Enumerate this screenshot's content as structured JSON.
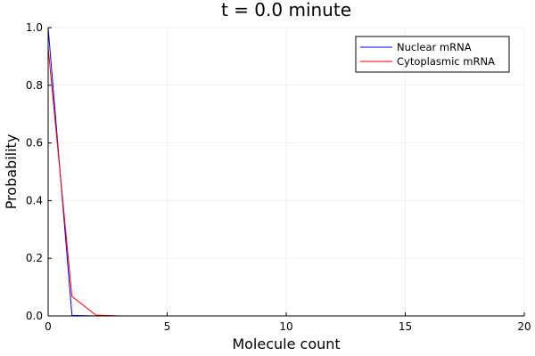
{
  "chart_data": {
    "type": "line",
    "title": "t = 0.0 minute",
    "xlabel": "Molecule count",
    "ylabel": "Probability",
    "xlim": [
      0,
      20
    ],
    "ylim": [
      0,
      1
    ],
    "xticks": [
      0,
      5,
      10,
      15,
      20
    ],
    "xtick_labels": [
      "0",
      "5",
      "10",
      "15",
      "20"
    ],
    "yticks": [
      0,
      0.2,
      0.4,
      0.6,
      0.8,
      1.0
    ],
    "ytick_labels": [
      "0.0",
      "0.2",
      "0.4",
      "0.6",
      "0.8",
      "1.0"
    ],
    "grid": true,
    "legend_position": "top-right",
    "x": [
      0,
      1,
      2,
      3,
      4,
      5,
      6,
      7,
      8,
      9,
      10,
      11,
      12,
      13,
      14,
      15,
      16,
      17,
      18,
      19,
      20
    ],
    "series": [
      {
        "name": "Nuclear mRNA",
        "color": "#0000ff",
        "values": [
          1.0,
          0.002,
          0,
          0,
          0,
          0,
          0,
          0,
          0,
          0,
          0,
          0,
          0,
          0,
          0,
          0,
          0,
          0,
          0,
          0,
          0
        ]
      },
      {
        "name": "Cytoplasmic mRNA",
        "color": "#ff0000",
        "values": [
          0.93,
          0.068,
          0.003,
          0,
          0,
          0,
          0,
          0,
          0,
          0,
          0,
          0,
          0,
          0,
          0,
          0,
          0,
          0,
          0,
          0,
          0
        ]
      }
    ]
  }
}
